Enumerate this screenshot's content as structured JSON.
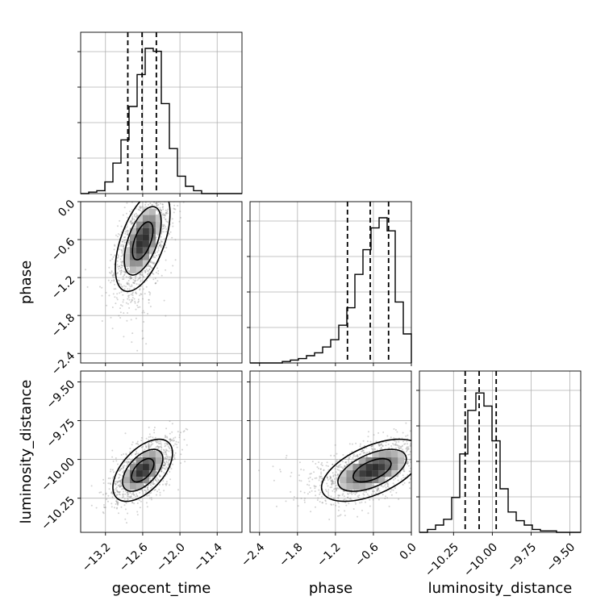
{
  "chart_data": {
    "type": "corner",
    "parameters": [
      "geocent_time",
      "phase",
      "luminosity_distance"
    ],
    "ranges": {
      "geocent_time": [
        -13.6,
        -11.0
      ],
      "phase": [
        -2.55,
        0.0
      ],
      "luminosity_distance": [
        -10.47,
        -9.43
      ]
    },
    "ticks": {
      "geocent_time": {
        "values": [
          -13.2,
          -12.6,
          -12.0,
          -11.4
        ],
        "labels": [
          "−13.2",
          "−12.6",
          "−12.0",
          "−11.4"
        ]
      },
      "phase": {
        "values": [
          -2.4,
          -1.8,
          -1.2,
          -0.6,
          0.0
        ],
        "labels": [
          "−2.4",
          "−1.8",
          "−1.2",
          "−0.6",
          "0.0"
        ]
      },
      "luminosity_distance": {
        "values": [
          -10.25,
          -10.0,
          -9.75,
          -9.5
        ],
        "labels": [
          "−10.25",
          "−10.00",
          "−9.75",
          "−9.50"
        ]
      }
    },
    "quantiles": {
      "geocent_time": [
        -12.84,
        -12.61,
        -12.38
      ],
      "phase": [
        -1.01,
        -0.65,
        -0.36
      ],
      "luminosity_distance": [
        -10.175,
        -10.085,
        -9.975
      ]
    },
    "histograms": {
      "geocent_time": [
        0,
        0.01,
        0.02,
        0.08,
        0.21,
        0.37,
        0.6,
        0.82,
        1.0,
        0.98,
        0.62,
        0.31,
        0.12,
        0.05,
        0.02,
        0,
        0,
        0,
        0,
        0
      ],
      "phase": [
        0,
        0,
        0,
        0,
        0.01,
        0.02,
        0.03,
        0.05,
        0.07,
        0.11,
        0.16,
        0.26,
        0.38,
        0.61,
        0.78,
        0.93,
        1.0,
        0.91,
        0.42,
        0.2
      ],
      "luminosity_distance": [
        0,
        0.02,
        0.05,
        0.09,
        0.24,
        0.54,
        0.84,
        0.96,
        0.87,
        0.63,
        0.3,
        0.14,
        0.08,
        0.05,
        0.02,
        0.01,
        0.01,
        0,
        0,
        0
      ]
    },
    "pairs": [
      {
        "x": "geocent_time",
        "y": "phase",
        "mean": [
          -12.6,
          -0.62
        ],
        "std": [
          0.22,
          0.4
        ],
        "corr": 0.55
      },
      {
        "x": "geocent_time",
        "y": "luminosity_distance",
        "mean": [
          -12.6,
          -10.07
        ],
        "std": [
          0.24,
          0.1
        ],
        "corr": 0.55
      },
      {
        "x": "phase",
        "y": "luminosity_distance",
        "mean": [
          -0.62,
          -10.07
        ],
        "std": [
          0.4,
          0.1
        ],
        "corr": 0.55
      }
    ],
    "grid": true,
    "colors": {
      "ink": "#000000",
      "grid": "#b0b0b0",
      "scatter": "#808080"
    }
  }
}
